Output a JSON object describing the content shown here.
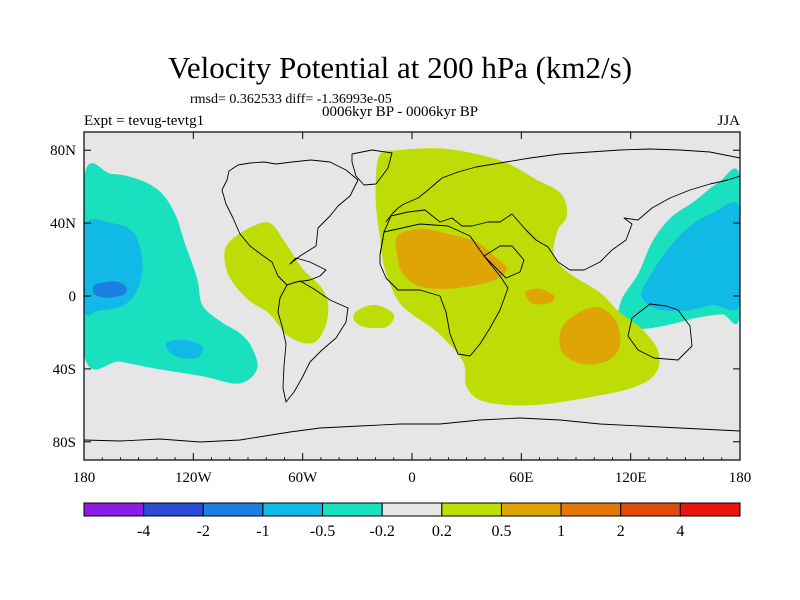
{
  "header": {
    "stats": "rmsd= 0.362533 diff= -1.36993e-05",
    "period": "0006kyr BP - 0006kyr BP",
    "experiment": "Expt = tevug-tevtg1",
    "season": "JJA"
  },
  "chart_data": {
    "type": "heatmap",
    "title": "Velocity Potential at 200 hPa (km2/s)",
    "projection": "cylindrical-equidistant",
    "x_range": [
      -180,
      180
    ],
    "y_range": [
      -90,
      90
    ],
    "x_ticks": [
      {
        "value": -180,
        "label": "180"
      },
      {
        "value": -120,
        "label": "120W"
      },
      {
        "value": -60,
        "label": "60W"
      },
      {
        "value": 0,
        "label": "0"
      },
      {
        "value": 60,
        "label": "60E"
      },
      {
        "value": 120,
        "label": "120E"
      },
      {
        "value": 180,
        "label": "180"
      }
    ],
    "y_ticks": [
      {
        "value": 80,
        "label": "80N"
      },
      {
        "value": 40,
        "label": "40N"
      },
      {
        "value": 0,
        "label": "0"
      },
      {
        "value": -40,
        "label": "40S"
      },
      {
        "value": -80,
        "label": "80S"
      }
    ],
    "colorbar": {
      "colors": [
        "#8d1be3",
        "#2b4ad6",
        "#1a7fe0",
        "#10b9e6",
        "#19e1c0",
        "#e6e6e6",
        "#bedd06",
        "#dfa505",
        "#e3780a",
        "#e04a0d",
        "#e8160e"
      ],
      "tick_labels": [
        "-4",
        "-2",
        "-1",
        "-0.5",
        "-0.2",
        "0.2",
        "0.5",
        "1",
        "2",
        "4"
      ]
    },
    "regions": [
      {
        "level": "-0.5 to -0.2",
        "color": "#19e1c0",
        "polygon": [
          [
            -180,
            65
          ],
          [
            -165,
            67
          ],
          [
            -150,
            64
          ],
          [
            -138,
            57
          ],
          [
            -130,
            45
          ],
          [
            -125,
            30
          ],
          [
            -118,
            10
          ],
          [
            -115,
            -5
          ],
          [
            -105,
            -14
          ],
          [
            -95,
            -20
          ],
          [
            -88,
            -28
          ],
          [
            -85,
            -40
          ],
          [
            -95,
            -48
          ],
          [
            -115,
            -44
          ],
          [
            -140,
            -40
          ],
          [
            -160,
            -36
          ],
          [
            -180,
            -32
          ]
        ]
      },
      {
        "level": "-1 to -0.5",
        "color": "#10b9e6",
        "polygon": [
          [
            -180,
            38
          ],
          [
            -165,
            40
          ],
          [
            -153,
            35
          ],
          [
            -148,
            20
          ],
          [
            -150,
            5
          ],
          [
            -158,
            -5
          ],
          [
            -172,
            -8
          ],
          [
            -180,
            -7
          ]
        ]
      },
      {
        "level": "-2 to -1",
        "color": "#1a7fe0",
        "polygon": [
          [
            -174,
            6
          ],
          [
            -163,
            8
          ],
          [
            -157,
            5
          ],
          [
            -158,
            1
          ],
          [
            -167,
            -1
          ],
          [
            -174,
            1
          ]
        ]
      },
      {
        "level": "-1 to -0.5",
        "color": "#10b9e6",
        "polygon": [
          [
            -135,
            -26
          ],
          [
            -125,
            -24
          ],
          [
            -115,
            -28
          ],
          [
            -118,
            -34
          ],
          [
            -130,
            -33
          ]
        ]
      },
      {
        "level": "-0.5 to -0.2",
        "color": "#19e1c0",
        "polygon": [
          [
            180,
            65
          ],
          [
            168,
            62
          ],
          [
            155,
            52
          ],
          [
            142,
            43
          ],
          [
            132,
            30
          ],
          [
            124,
            12
          ],
          [
            115,
            -2
          ],
          [
            114,
            -14
          ],
          [
            124,
            -18
          ],
          [
            140,
            -16
          ],
          [
            156,
            -12
          ],
          [
            170,
            -10
          ],
          [
            180,
            -10
          ]
        ]
      },
      {
        "level": "-1 to -0.5",
        "color": "#10b9e6",
        "polygon": [
          [
            180,
            48
          ],
          [
            166,
            46
          ],
          [
            152,
            38
          ],
          [
            140,
            25
          ],
          [
            130,
            10
          ],
          [
            126,
            0
          ],
          [
            134,
            -7
          ],
          [
            150,
            -8
          ],
          [
            165,
            -5
          ],
          [
            180,
            -4
          ]
        ]
      },
      {
        "level": "0.2 to 0.5",
        "color": "#bedd06",
        "polygon": [
          [
            -100,
            30
          ],
          [
            -88,
            38
          ],
          [
            -78,
            40
          ],
          [
            -70,
            30
          ],
          [
            -60,
            15
          ],
          [
            -50,
            5
          ],
          [
            -46,
            -5
          ],
          [
            -48,
            -18
          ],
          [
            -55,
            -26
          ],
          [
            -68,
            -22
          ],
          [
            -78,
            -10
          ],
          [
            -90,
            -2
          ],
          [
            -100,
            10
          ],
          [
            -103,
            22
          ]
        ]
      },
      {
        "level": "0.2 to 0.5",
        "color": "#bedd06",
        "polygon": [
          [
            -30,
            -8
          ],
          [
            -20,
            -5
          ],
          [
            -10,
            -10
          ],
          [
            -14,
            -17
          ],
          [
            -26,
            -17
          ],
          [
            -32,
            -13
          ]
        ]
      },
      {
        "level": "0.2 to 0.5",
        "color": "#bedd06",
        "polygon": [
          [
            -18,
            77
          ],
          [
            -8,
            80
          ],
          [
            15,
            81
          ],
          [
            35,
            78
          ],
          [
            52,
            73
          ],
          [
            68,
            64
          ],
          [
            82,
            56
          ],
          [
            85,
            44
          ],
          [
            80,
            36
          ],
          [
            78,
            22
          ],
          [
            87,
            12
          ],
          [
            103,
            2
          ],
          [
            114,
            -9
          ],
          [
            126,
            -18
          ],
          [
            135,
            -30
          ],
          [
            134,
            -42
          ],
          [
            122,
            -50
          ],
          [
            95,
            -56
          ],
          [
            65,
            -60
          ],
          [
            40,
            -58
          ],
          [
            30,
            -50
          ],
          [
            28,
            -36
          ],
          [
            14,
            -20
          ],
          [
            0,
            -10
          ],
          [
            -8,
            -2
          ],
          [
            -15,
            15
          ],
          [
            -18,
            35
          ],
          [
            -20,
            55
          ]
        ]
      },
      {
        "level": "0.5 to 1",
        "color": "#dfa505",
        "polygon": [
          [
            -8,
            33
          ],
          [
            5,
            37
          ],
          [
            20,
            34
          ],
          [
            35,
            30
          ],
          [
            45,
            22
          ],
          [
            52,
            15
          ],
          [
            46,
            9
          ],
          [
            35,
            6
          ],
          [
            20,
            4
          ],
          [
            5,
            5
          ],
          [
            -5,
            12
          ],
          [
            -8,
            22
          ]
        ]
      },
      {
        "level": "0.5 to 1",
        "color": "#dfa505",
        "polygon": [
          [
            62,
            2
          ],
          [
            70,
            4
          ],
          [
            78,
            0
          ],
          [
            75,
            -4
          ],
          [
            66,
            -4
          ]
        ]
      },
      {
        "level": "0.5 to 1",
        "color": "#dfa505",
        "polygon": [
          [
            90,
            -10
          ],
          [
            102,
            -6
          ],
          [
            112,
            -14
          ],
          [
            114,
            -28
          ],
          [
            106,
            -36
          ],
          [
            92,
            -37
          ],
          [
            82,
            -30
          ],
          [
            82,
            -18
          ]
        ]
      }
    ]
  }
}
